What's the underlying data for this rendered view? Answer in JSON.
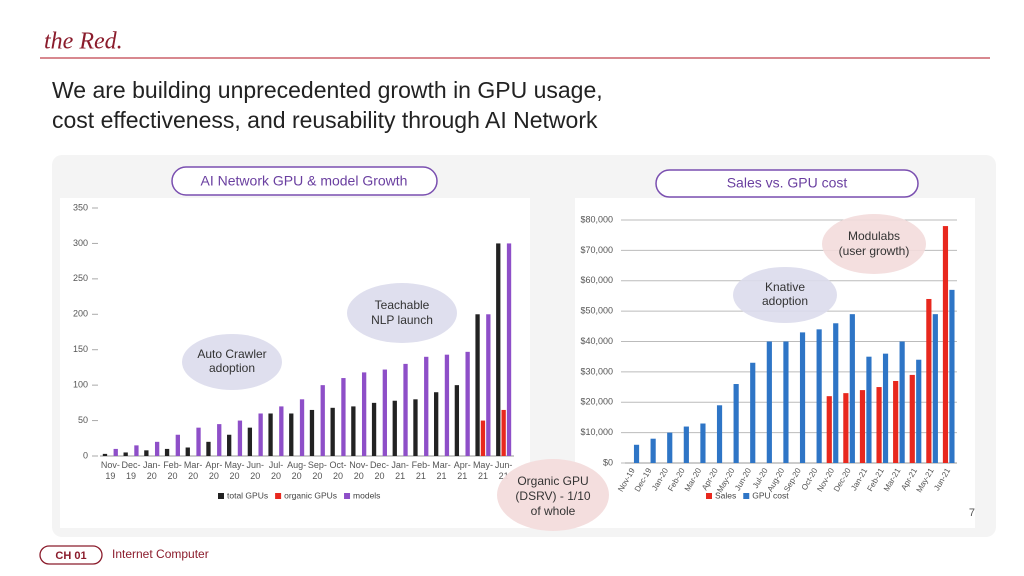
{
  "logo": "the Red.",
  "title_lines": [
    "We are building unprecedented growth in GPU usage,",
    "cost effectiveness, and reusability through AI Network"
  ],
  "page_number": "7",
  "chapter": "CH 01",
  "section": "Internet Computer",
  "chart_data": [
    {
      "type": "bar",
      "title": "AI Network GPU & model Growth",
      "categories": [
        "Nov-19",
        "Dec-19",
        "Jan-20",
        "Feb-20",
        "Mar-20",
        "Apr-20",
        "May-20",
        "Jun-20",
        "Jul-20",
        "Aug-20",
        "Sep-20",
        "Oct-20",
        "Nov-20",
        "Dec-20",
        "Jan-21",
        "Feb-21",
        "Mar-21",
        "Apr-21",
        "May-21",
        "Jun-21"
      ],
      "series": [
        {
          "name": "total GPUs",
          "color": "#222222",
          "values": [
            3,
            5,
            8,
            10,
            12,
            20,
            30,
            40,
            60,
            60,
            65,
            68,
            70,
            75,
            78,
            80,
            90,
            100,
            200,
            300
          ]
        },
        {
          "name": "organic GPUs",
          "color": "#e8281e",
          "values": [
            null,
            null,
            null,
            null,
            null,
            null,
            null,
            null,
            null,
            null,
            null,
            null,
            null,
            null,
            null,
            null,
            null,
            null,
            50,
            65
          ]
        },
        {
          "name": "models",
          "color": "#8e4fc8",
          "values": [
            10,
            15,
            20,
            30,
            40,
            45,
            50,
            60,
            70,
            80,
            100,
            110,
            118,
            122,
            130,
            140,
            143,
            147,
            200,
            300
          ]
        }
      ],
      "ylim": [
        0,
        350
      ],
      "yticks": [
        0,
        50,
        100,
        150,
        200,
        250,
        300,
        350
      ],
      "grid": false,
      "annotations": [
        {
          "lines": [
            "Auto Crawler",
            "adoption"
          ]
        },
        {
          "lines": [
            "Teachable",
            "NLP launch"
          ]
        },
        {
          "lines": [
            "Organic GPU",
            "(DSRV) - 1/10",
            "of whole"
          ]
        }
      ]
    },
    {
      "type": "bar",
      "title": "Sales vs. GPU cost",
      "categories": [
        "Nov-19",
        "Dec-19",
        "Jan-20",
        "Feb-20",
        "Mar-20",
        "Apr-20",
        "May-20",
        "Jun-20",
        "Jul-20",
        "Aug-20",
        "Sep-20",
        "Oct-20",
        "Nov-20",
        "Dec-20",
        "Jan-21",
        "Feb-21",
        "Mar-21",
        "Apr-21",
        "May-21",
        "Jun-21"
      ],
      "series": [
        {
          "name": "Sales",
          "color": "#e8281e",
          "values": [
            null,
            null,
            null,
            null,
            null,
            null,
            null,
            null,
            null,
            null,
            null,
            null,
            22000,
            23000,
            24000,
            25000,
            27000,
            29000,
            54000,
            78000
          ]
        },
        {
          "name": "GPU cost",
          "color": "#2e75c6",
          "values": [
            6000,
            8000,
            10000,
            12000,
            13000,
            19000,
            26000,
            33000,
            40000,
            40000,
            43000,
            44000,
            46000,
            49000,
            35000,
            36000,
            40000,
            34000,
            49000,
            57000
          ]
        }
      ],
      "ylim": [
        0,
        80000
      ],
      "yticks": [
        {
          "value": 0,
          "label": "$0"
        },
        {
          "value": 10000,
          "label": "$10,000"
        },
        {
          "value": 20000,
          "label": "$20,000"
        },
        {
          "value": 30000,
          "label": "$30,000"
        },
        {
          "value": 40000,
          "label": "$40,000"
        },
        {
          "value": 50000,
          "label": "$50,000"
        },
        {
          "value": 60000,
          "label": "$60,000"
        },
        {
          "value": 70000,
          "label": "$70,000"
        },
        {
          "value": 80000,
          "label": "$80,000"
        }
      ],
      "grid": true,
      "annotations": [
        {
          "lines": [
            "Knative",
            "adoption"
          ]
        },
        {
          "lines": [
            "Modulabs",
            "(user growth)"
          ]
        }
      ]
    }
  ]
}
